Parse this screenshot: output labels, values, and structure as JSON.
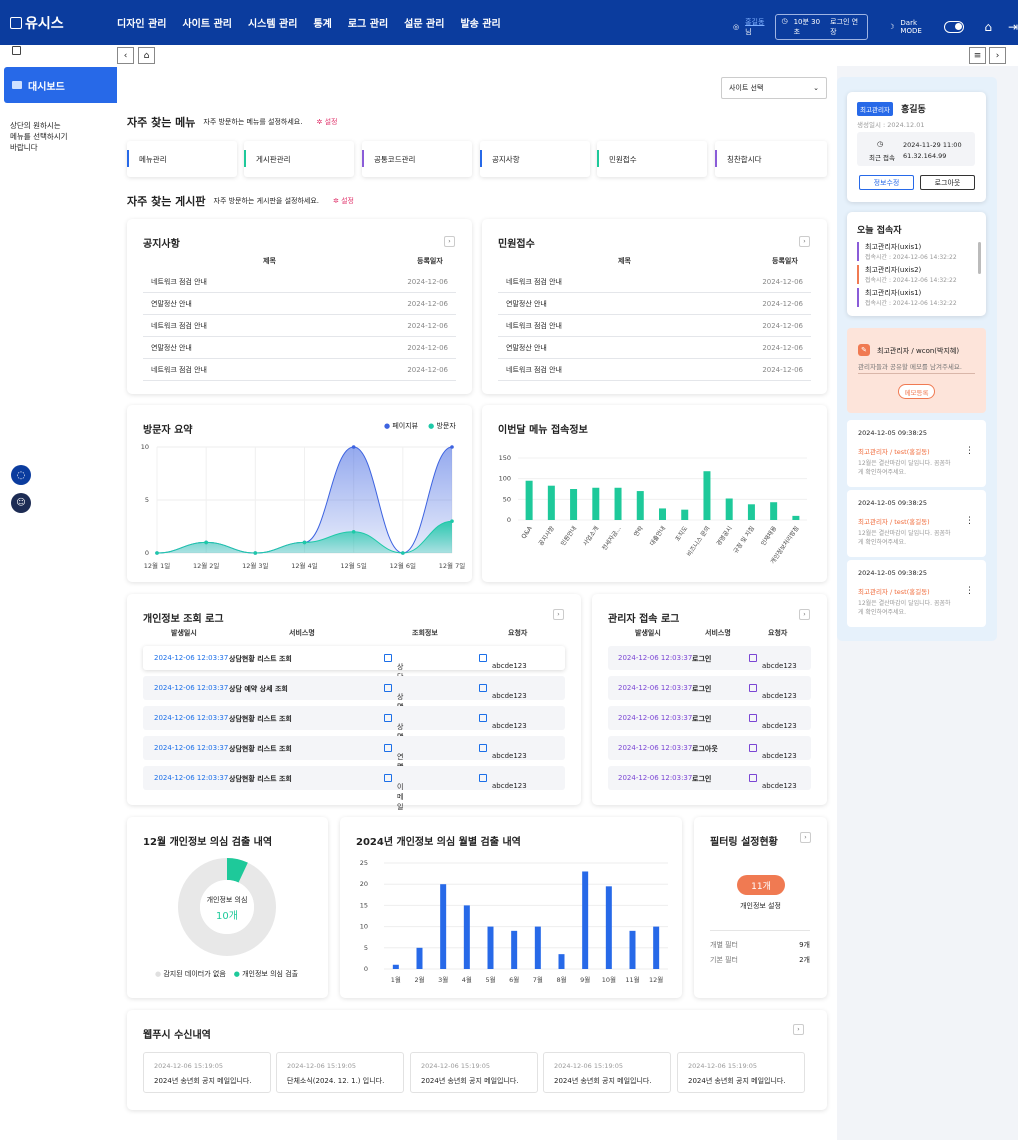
{
  "app": {
    "logo": "유시스",
    "user_name": "홍길동",
    "user_suffix": "님",
    "session_time": "10분 30초",
    "extend_login": "로그인 연장",
    "dark_mode": "Dark MODE"
  },
  "gnb": [
    "디자인 관리",
    "사이트 관리",
    "시스템 관리",
    "통계",
    "로그 관리",
    "설문 관리",
    "발송 관리"
  ],
  "sidebar": {
    "active_item": "대시보드",
    "hint": [
      "상단의 원하시는",
      "메뉴를 선택하시기",
      "바랍니다"
    ]
  },
  "site_select": {
    "value": "사이트 선택"
  },
  "quick_menu": {
    "title": "자주 찾는 메뉴",
    "desc": "자주 방문하는 메뉴를 설정하세요.",
    "setting": "설정",
    "items": [
      {
        "label": "메뉴관리",
        "color": "#2769e8"
      },
      {
        "label": "게시판관리",
        "color": "#1ec99a"
      },
      {
        "label": "공통코드관리",
        "color": "#8a5cd8"
      },
      {
        "label": "공지사항",
        "color": "#2769e8"
      },
      {
        "label": "민원접수",
        "color": "#1ec99a"
      },
      {
        "label": "칭찬합시다",
        "color": "#8a5cd8"
      }
    ]
  },
  "quick_board": {
    "title": "자주 찾는 게시판",
    "desc": "자주 방문하는 게시판을 설정하세요.",
    "setting": "설정"
  },
  "notice": {
    "title": "공지사항",
    "col_title": "제목",
    "col_date": "등록일자",
    "rows": [
      {
        "t": "네트워크 점검 안내",
        "d": "2024-12-06"
      },
      {
        "t": "연말정산 안내",
        "d": "2024-12-06"
      },
      {
        "t": "네트워크 점검 안내",
        "d": "2024-12-06"
      },
      {
        "t": "연말정산 안내",
        "d": "2024-12-06"
      },
      {
        "t": "네트워크 점검 안내",
        "d": "2024-12-06"
      }
    ]
  },
  "complaint": {
    "title": "민원접수",
    "col_title": "제목",
    "col_date": "등록일자",
    "rows": [
      {
        "t": "네트워크 점검 안내",
        "d": "2024-12-06"
      },
      {
        "t": "연말정산 안내",
        "d": "2024-12-06"
      },
      {
        "t": "네트워크 점검 안내",
        "d": "2024-12-06"
      },
      {
        "t": "연말정산 안내",
        "d": "2024-12-06"
      },
      {
        "t": "네트워크 점검 안내",
        "d": "2024-12-06"
      }
    ]
  },
  "visitor_chart": {
    "title": "방문자 요약",
    "legend": [
      "페이지뷰",
      "방문자"
    ],
    "colors": [
      "#3d63e0",
      "#1ec9a8"
    ]
  },
  "menu_chart": {
    "title": "이번달 메뉴 접속정보"
  },
  "privacy_log": {
    "title": "개인정보 조회 로그",
    "cols": [
      "발생일시",
      "서비스명",
      "조회정보",
      "요청자"
    ],
    "rows": [
      {
        "time": "2024-12-06 12:03:37",
        "svc": "상담현황 리스트 조회",
        "info": "상담사명, 연락처",
        "user": "abcde123"
      },
      {
        "time": "2024-12-06 12:03:37",
        "svc": "상담 예약 상세 조회",
        "info": "상담사명, 연락처",
        "user": "abcde123"
      },
      {
        "time": "2024-12-06 12:03:37",
        "svc": "상담현황 리스트 조회",
        "info": "상담사명, 연락처",
        "user": "abcde123"
      },
      {
        "time": "2024-12-06 12:03:37",
        "svc": "상담현황 리스트 조회",
        "info": "연락처",
        "user": "abcde123"
      },
      {
        "time": "2024-12-06 12:03:37",
        "svc": "상담현황 리스트 조회",
        "info": "이메일",
        "user": "abcde123"
      }
    ]
  },
  "admin_log": {
    "title": "관리자 접속 로그",
    "cols": [
      "발생일시",
      "서비스명",
      "요청자"
    ],
    "rows": [
      {
        "time": "2024-12-06 12:03:37",
        "svc": "로그인",
        "user": "abcde123"
      },
      {
        "time": "2024-12-06 12:03:37",
        "svc": "로그인",
        "user": "abcde123"
      },
      {
        "time": "2024-12-06 12:03:37",
        "svc": "로그인",
        "user": "abcde123"
      },
      {
        "time": "2024-12-06 12:03:37",
        "svc": "로그아웃",
        "user": "abcde123"
      },
      {
        "time": "2024-12-06 12:03:37",
        "svc": "로그인",
        "user": "abcde123"
      }
    ]
  },
  "donut": {
    "title": "12월 개인정보 의심 검출 내역",
    "center_label": "개인정보 의심",
    "center_value": "10개",
    "legend": [
      "감지된 데이터가 없음",
      "개인정보 의심 검출"
    ],
    "colors": [
      "#e8e8e8",
      "#1ec99a"
    ],
    "fraction": 0.07
  },
  "monthly": {
    "title": "2024년 개인정보 의심 월별 검출 내역"
  },
  "filter": {
    "title": "필터링 설정현황",
    "badge": "11개",
    "badge_label": "개인정보 설정",
    "rows": [
      {
        "k": "개별 필터",
        "v": "9개"
      },
      {
        "k": "기본 필터",
        "v": "2개"
      }
    ]
  },
  "webfax": {
    "title": "웹푸시 수신내역",
    "items": [
      {
        "d": "2024-12-06 15:19:05",
        "t": "2024년 송년회 공지 메일입니다."
      },
      {
        "d": "2024-12-06 15:19:05",
        "t": "단체소식(2024. 12. 1.) 입니다."
      },
      {
        "d": "2024-12-06 15:19:05",
        "t": "2024년 송년회 공지 메일입니다."
      },
      {
        "d": "2024-12-06 15:19:05",
        "t": "2024년 송년회 공지 메일입니다."
      },
      {
        "d": "2024-12-06 15:19:05",
        "t": "2024년 송년회 공지 메일입니다."
      }
    ]
  },
  "profile": {
    "role": "최고관리자",
    "name": "홍길동",
    "created": "생성일시 : 2024.12.01",
    "last_login_label": "최근 접속",
    "last_login_time": "2024-11-29 11:00",
    "last_login_ip": "61.32.164.99",
    "edit": "정보수정",
    "logout": "로그아웃"
  },
  "today_visitors": {
    "title": "오늘 접속자",
    "items": [
      {
        "n": "최고관리자(uxis1)",
        "t": "접속시간 : 2024-12-06 14:32:22",
        "c": "#8a5cd8"
      },
      {
        "n": "최고관리자(uxis2)",
        "t": "접속시간 : 2024-12-06 14:32:22",
        "c": "#f07a52"
      },
      {
        "n": "최고관리자(uxis1)",
        "t": "접속시간 : 2024-12-06 14:32:22",
        "c": "#8a5cd8"
      }
    ]
  },
  "memo": {
    "title": "최고관리자 / wcon(박지혜)",
    "placeholder": "관리자들과 공유할 메모를 남겨주세요.",
    "button": "메모등록"
  },
  "messages": [
    {
      "d": "2024-12-05 09:38:25",
      "who": "최고관리자 / test(홍길동)",
      "body": [
        "12월은 결산마감이 달입니다. 꼼꼼하",
        "게 확인하여주세요."
      ]
    },
    {
      "d": "2024-12-05 09:38:25",
      "who": "최고관리자 / test(홍길동)",
      "body": [
        "12월은 결산마감이 달입니다. 꼼꼼하",
        "게 확인하여주세요."
      ]
    },
    {
      "d": "2024-12-05 09:38:25",
      "who": "최고관리자 / test(홍길동)",
      "body": [
        "12월은 결산마감이 달입니다. 꼼꼼하",
        "게 확인하여주세요."
      ]
    }
  ],
  "chart_data": [
    {
      "type": "area",
      "title": "방문자 요약",
      "x": [
        "12월 1일",
        "12월 2일",
        "12월 3일",
        "12월 4일",
        "12월 5일",
        "12월 6일",
        "12월 7일"
      ],
      "ylim": [
        0,
        10
      ],
      "yticks": [
        0,
        5,
        10
      ],
      "legend_position": "top-right",
      "series": [
        {
          "name": "페이지뷰",
          "values": [
            0,
            1,
            0,
            1,
            10,
            0,
            10
          ]
        },
        {
          "name": "방문자",
          "values": [
            0,
            1,
            0,
            1,
            2,
            0,
            3
          ]
        }
      ]
    },
    {
      "type": "bar",
      "title": "이번달 메뉴 접속정보",
      "categories": [
        "Q&A",
        "공지사항",
        "민원안내",
        "사업소개",
        "전세자금...",
        "연락",
        "대출안내",
        "조직도",
        "비즈니스 문의",
        "경영공시",
        "규정 및 지침",
        "인재채용",
        "개인정보처리방침"
      ],
      "values": [
        95,
        83,
        75,
        78,
        78,
        70,
        28,
        25,
        118,
        52,
        38,
        43,
        10
      ],
      "ylim": [
        0,
        150
      ],
      "yticks": [
        0,
        50,
        100,
        150
      ],
      "color": "#1ec99a"
    },
    {
      "type": "pie",
      "title": "12월 개인정보 의심 검출 내역",
      "labels": [
        "감지된 데이터가 없음",
        "개인정보 의심 검출"
      ],
      "values": [
        93,
        7
      ]
    },
    {
      "type": "bar",
      "title": "2024년 개인정보 의심 월별 검출 내역",
      "categories": [
        "1월",
        "2월",
        "3월",
        "4월",
        "5월",
        "6월",
        "7월",
        "8월",
        "9월",
        "10월",
        "11월",
        "12월"
      ],
      "values": [
        1,
        5,
        20,
        15,
        10,
        9,
        10,
        3.5,
        23,
        19.5,
        9,
        10
      ],
      "ylim": [
        0,
        25
      ],
      "yticks": [
        0,
        5,
        10,
        15,
        20,
        25
      ],
      "color": "#2769e8"
    }
  ]
}
